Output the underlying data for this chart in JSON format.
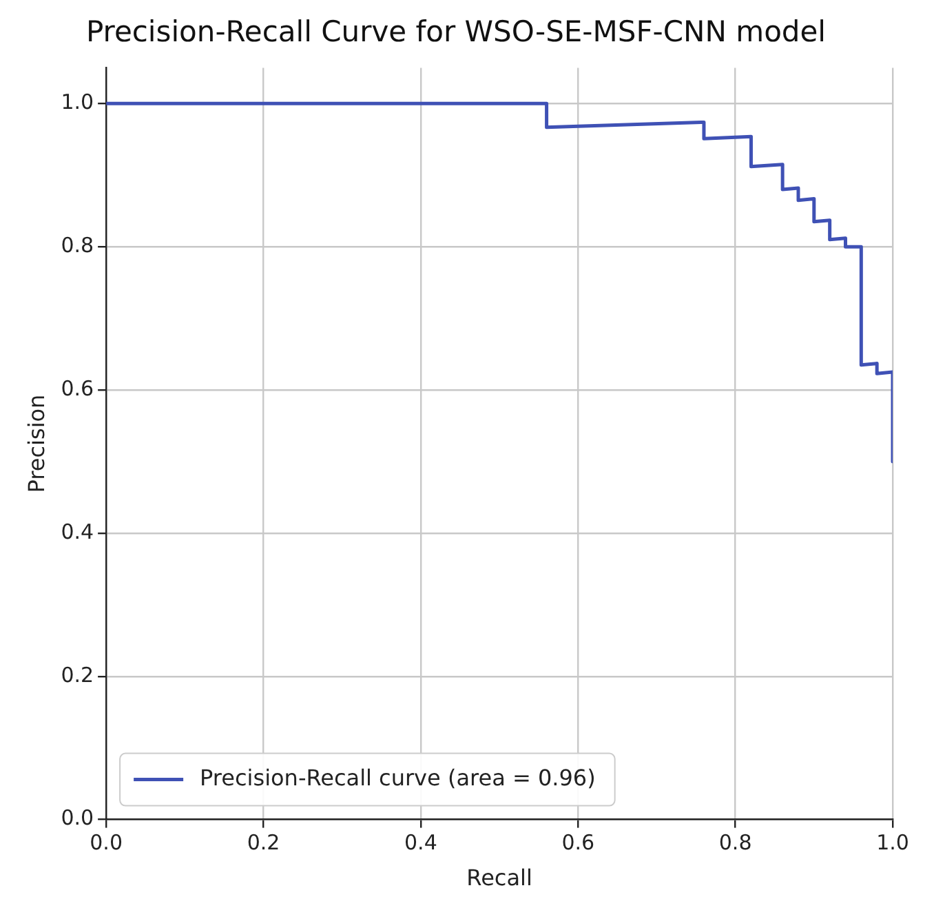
{
  "chart_data": {
    "type": "line",
    "title": "Precision-Recall Curve for WSO-SE-MSF-CNN model",
    "xlabel": "Recall",
    "ylabel": "Precision",
    "x": [
      0,
      0.56,
      0.56,
      0.76,
      0.76,
      0.82,
      0.82,
      0.86,
      0.86,
      0.88,
      0.88,
      0.9,
      0.9,
      0.92,
      0.92,
      0.94,
      0.94,
      0.96,
      0.96,
      0.98,
      0.98,
      1.0,
      1.0
    ],
    "series": [
      {
        "name": "Precision-Recall curve (area = 0.96)",
        "color": "#3f51b5",
        "values": [
          1.0,
          1.0,
          0.967,
          0.974,
          0.951,
          0.954,
          0.912,
          0.915,
          0.88,
          0.882,
          0.865,
          0.867,
          0.835,
          0.837,
          0.81,
          0.812,
          0.8,
          0.8,
          0.635,
          0.637,
          0.623,
          0.625,
          0.5
        ]
      }
    ],
    "xlim": [
      0,
      1.0
    ],
    "ylim": [
      0,
      1.05
    ],
    "xticks": [
      {
        "value": 0,
        "label": "0.0"
      },
      0.2,
      0.4,
      0.6,
      0.8,
      {
        "value": 1,
        "label": "1.0"
      }
    ],
    "yticks": [
      {
        "value": 0,
        "label": "0.0"
      },
      0.2,
      0.4,
      0.6,
      0.8,
      {
        "value": 1,
        "label": "1.0"
      }
    ],
    "grid": true,
    "legend": "bottom left",
    "marker": "none",
    "line_style": "solid"
  }
}
